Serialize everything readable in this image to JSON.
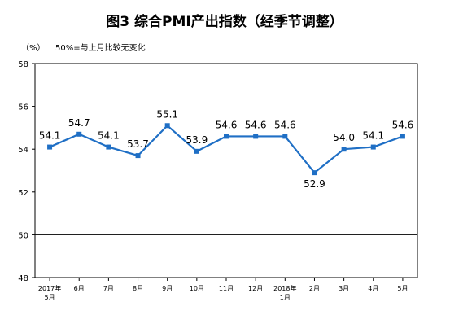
{
  "chart_data": {
    "type": "line",
    "title": "图3  综合PMI产出指数（经季节调整）",
    "unit_label": "（%）",
    "note": "50%=与上月比较无变化",
    "categories": [
      [
        "2017年",
        "5月"
      ],
      [
        "6月"
      ],
      [
        "7月"
      ],
      [
        "8月"
      ],
      [
        "9月"
      ],
      [
        "10月"
      ],
      [
        "11月"
      ],
      [
        "12月"
      ],
      [
        "2018年",
        "1月"
      ],
      [
        "2月"
      ],
      [
        "3月"
      ],
      [
        "4月"
      ],
      [
        "5月"
      ]
    ],
    "series": [
      {
        "values": [
          54.1,
          54.7,
          54.1,
          53.7,
          55.1,
          53.9,
          54.6,
          54.6,
          54.6,
          52.9,
          54.0,
          54.1,
          54.6
        ],
        "color": "#1f6fc5"
      }
    ],
    "ylim": [
      48,
      58
    ],
    "yticks": [
      48,
      50,
      52,
      54,
      56,
      58
    ],
    "reference_line": 50,
    "grid": false
  }
}
